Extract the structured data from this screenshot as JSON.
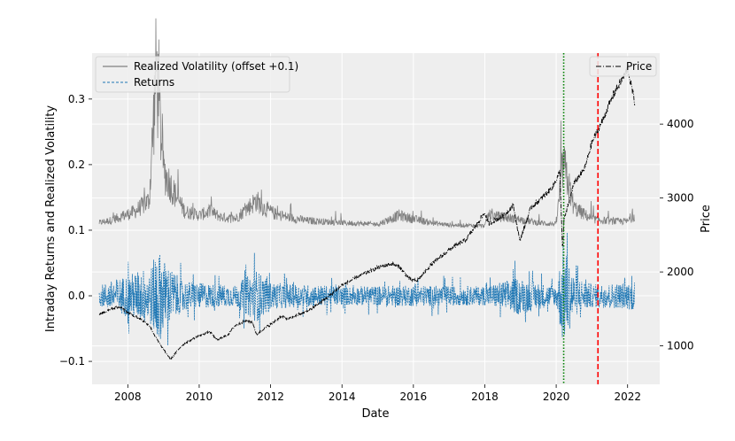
{
  "chart_data": {
    "type": "line",
    "title": "",
    "xlabel": "Date",
    "ylabel_left": "Intraday Returns and Realized Volatility",
    "ylabel_right": "Price",
    "xlim": [
      2007.0,
      2022.9
    ],
    "ylim_left": [
      -0.135,
      0.37
    ],
    "ylim_right": [
      480,
      4960
    ],
    "x_ticks": [
      2008,
      2010,
      2012,
      2014,
      2016,
      2018,
      2020,
      2022
    ],
    "y_ticks_left": [
      -0.1,
      0.0,
      0.1,
      0.2,
      0.3
    ],
    "y_ticks_right": [
      1000,
      2000,
      3000,
      4000
    ],
    "grid": true,
    "legend_left": {
      "placement": "upper-left",
      "entries": [
        {
          "label": "Realized Volatility (offset +0.1)",
          "color": "#808080",
          "style": "solid"
        },
        {
          "label": "Returns",
          "color": "#1f77b4",
          "style": "dashed"
        }
      ]
    },
    "legend_right": {
      "placement": "upper-right",
      "entries": [
        {
          "label": "Price",
          "color": "#000000",
          "style": "dashdot"
        }
      ]
    },
    "vlines": [
      {
        "x": 2020.21,
        "color": "#008000",
        "style": "dotted"
      },
      {
        "x": 2021.17,
        "color": "#ff0000",
        "style": "dashed"
      }
    ],
    "series": [
      {
        "name": "Price",
        "axis": "right",
        "color": "#000000",
        "style": "dashdot",
        "x": [
          2007.2,
          2007.5,
          2007.8,
          2008.0,
          2008.3,
          2008.6,
          2008.8,
          2009.0,
          2009.2,
          2009.5,
          2009.8,
          2010.0,
          2010.3,
          2010.5,
          2010.8,
          2011.0,
          2011.3,
          2011.5,
          2011.6,
          2011.8,
          2012.0,
          2012.3,
          2012.5,
          2012.8,
          2013.0,
          2013.5,
          2014.0,
          2014.5,
          2015.0,
          2015.4,
          2015.6,
          2015.9,
          2016.1,
          2016.5,
          2017.0,
          2017.5,
          2018.0,
          2018.1,
          2018.5,
          2018.8,
          2018.98,
          2019.3,
          2019.6,
          2019.9,
          2020.1,
          2020.18,
          2020.22,
          2020.5,
          2020.8,
          2021.0,
          2021.3,
          2021.6,
          2021.9,
          2022.0,
          2022.2
        ],
        "y": [
          1420,
          1500,
          1530,
          1450,
          1380,
          1280,
          1100,
          950,
          820,
          1000,
          1090,
          1140,
          1190,
          1080,
          1150,
          1270,
          1340,
          1320,
          1150,
          1230,
          1290,
          1400,
          1360,
          1430,
          1460,
          1620,
          1820,
          1950,
          2060,
          2110,
          2070,
          1900,
          1880,
          2100,
          2300,
          2450,
          2800,
          2650,
          2750,
          2900,
          2420,
          2880,
          3000,
          3150,
          3350,
          2300,
          2700,
          3200,
          3400,
          3750,
          4050,
          4400,
          4650,
          4750,
          4300
        ]
      },
      {
        "name": "Realized Volatility (offset +0.1)",
        "axis": "left",
        "color": "#808080",
        "style": "solid",
        "x": [
          2007.2,
          2007.5,
          2007.8,
          2008.2,
          2008.6,
          2008.8,
          2009.0,
          2009.3,
          2009.6,
          2010.0,
          2010.3,
          2010.6,
          2011.0,
          2011.6,
          2011.8,
          2012.2,
          2013.0,
          2014.0,
          2015.0,
          2015.6,
          2016.0,
          2016.5,
          2017.0,
          2018.0,
          2018.1,
          2018.9,
          2019.5,
          2020.0,
          2020.2,
          2020.5,
          2021.0,
          2021.5,
          2022.0,
          2022.2
        ],
        "y": [
          0.11,
          0.113,
          0.118,
          0.125,
          0.14,
          0.32,
          0.18,
          0.15,
          0.125,
          0.12,
          0.125,
          0.118,
          0.115,
          0.14,
          0.13,
          0.12,
          0.113,
          0.11,
          0.108,
          0.12,
          0.115,
          0.11,
          0.107,
          0.106,
          0.12,
          0.115,
          0.11,
          0.108,
          0.19,
          0.13,
          0.115,
          0.112,
          0.112,
          0.12
        ]
      },
      {
        "name": "Returns",
        "axis": "left",
        "color": "#1f77b4",
        "style": "dashed",
        "x": [
          2007.2,
          2008.0,
          2008.7,
          2008.8,
          2009.0,
          2009.5,
          2010.0,
          2011.0,
          2011.6,
          2012.0,
          2014.0,
          2016.0,
          2018.0,
          2018.9,
          2020.0,
          2020.2,
          2020.5,
          2021.0,
          2022.0,
          2022.2
        ],
        "amplitude": [
          0.02,
          0.04,
          0.06,
          0.1,
          0.07,
          0.03,
          0.025,
          0.02,
          0.05,
          0.025,
          0.018,
          0.02,
          0.018,
          0.035,
          0.018,
          0.1,
          0.04,
          0.022,
          0.025,
          0.03
        ]
      }
    ]
  }
}
